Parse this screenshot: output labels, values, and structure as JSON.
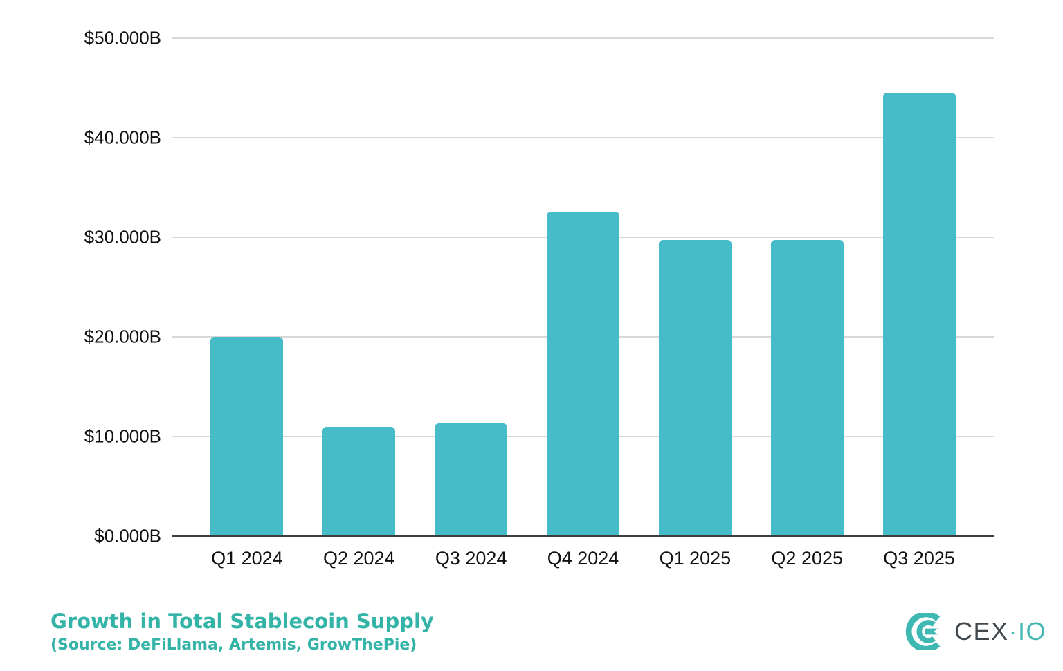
{
  "chart_data": {
    "type": "bar",
    "categories": [
      "Q1 2024",
      "Q2 2024",
      "Q3 2024",
      "Q4 2024",
      "Q1 2025",
      "Q2 2025",
      "Q3 2025"
    ],
    "values": [
      20.0,
      11.0,
      11.3,
      32.6,
      29.7,
      29.7,
      44.5
    ],
    "title": "Growth in Total Stablecoin Supply",
    "subtitle": "(Source: DeFiLlama, Artemis, GrowThePie)",
    "xlabel": "",
    "ylabel": "",
    "ylim": [
      0,
      50
    ],
    "y_ticks": [
      "$50.000B",
      "$40.000B",
      "$30.000B",
      "$20.000B",
      "$10.000B",
      "$0.000B"
    ],
    "y_tick_values": [
      50,
      40,
      30,
      20,
      10,
      0
    ],
    "grid": true,
    "legend": "none",
    "colors": {
      "bar": "#45bcc7",
      "gridline": "#d8d8d8",
      "axis_line": "#3d3d3d",
      "tick_label": "#111111",
      "title_teal": "#34b3a7"
    }
  },
  "footer": {
    "title": "Growth in Total Stablecoin Supply",
    "subtitle": "(Source: DeFiLlama, Artemis, GrowThePie)",
    "title_color": "#34b3a7"
  },
  "brand": {
    "name": "CEX.IO",
    "text_primary": "CEX",
    "text_secondary": "·IO",
    "mark_color": "#3eb8b2",
    "text_primary_color": "#40484e",
    "text_secondary_color": "#44b7b2"
  }
}
